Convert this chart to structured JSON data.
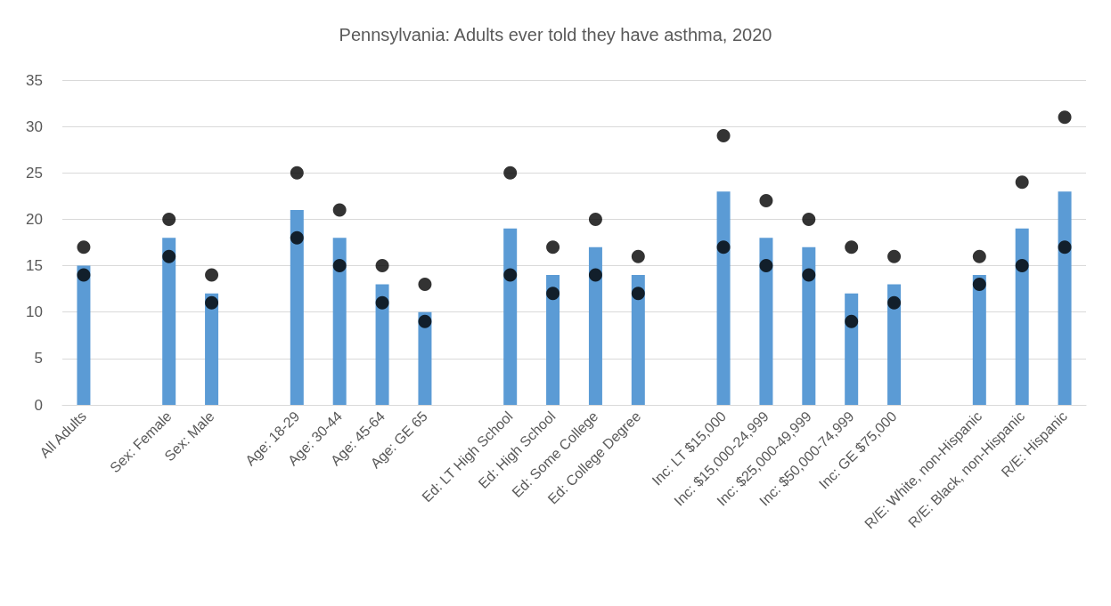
{
  "chart_data": {
    "type": "bar",
    "title": "Pennsylvania: Adults ever told they have asthma, 2020",
    "categories": [
      "All Adults",
      null,
      "Sex: Female",
      "Sex: Male",
      null,
      "Age: 18-29",
      "Age: 30-44",
      "Age: 45-64",
      "Age: GE 65",
      null,
      "Ed: LT High School",
      "Ed: High School",
      "Ed: Some College",
      "Ed: College Degree",
      null,
      "Inc: LT $15,000",
      "Inc: $15,000-24,999",
      "Inc: $25,000-49,999",
      "Inc: $50,000-74,999",
      "Inc: GE $75,000",
      null,
      "R/E: White, non-Hispanic",
      "R/E: Black, non-Hispanic",
      "R/E: Hispanic"
    ],
    "series": [
      {
        "color": "#5b9bd5",
        "values": [
          15,
          null,
          18,
          12,
          null,
          21,
          18,
          13,
          10,
          null,
          19,
          14,
          17,
          14,
          null,
          23,
          18,
          17,
          12,
          13,
          null,
          14,
          19,
          23
        ]
      },
      {
        "type": "scatter",
        "color": "#000000",
        "values": [
          17,
          null,
          20,
          14,
          null,
          25,
          21,
          15,
          13,
          null,
          25,
          17,
          20,
          16,
          null,
          29,
          22,
          20,
          17,
          16,
          null,
          16,
          24,
          31
        ]
      },
      {
        "type": "scatter",
        "color": "#000000",
        "values": [
          14,
          null,
          16,
          11,
          null,
          18,
          15,
          11,
          9,
          null,
          14,
          12,
          14,
          12,
          null,
          17,
          15,
          14,
          9,
          11,
          null,
          13,
          15,
          17
        ]
      }
    ],
    "ylim": [
      0,
      35
    ],
    "yticks": [
      0,
      5,
      10,
      15,
      20,
      25,
      30,
      35
    ],
    "grid": "y",
    "marker": "circle"
  }
}
